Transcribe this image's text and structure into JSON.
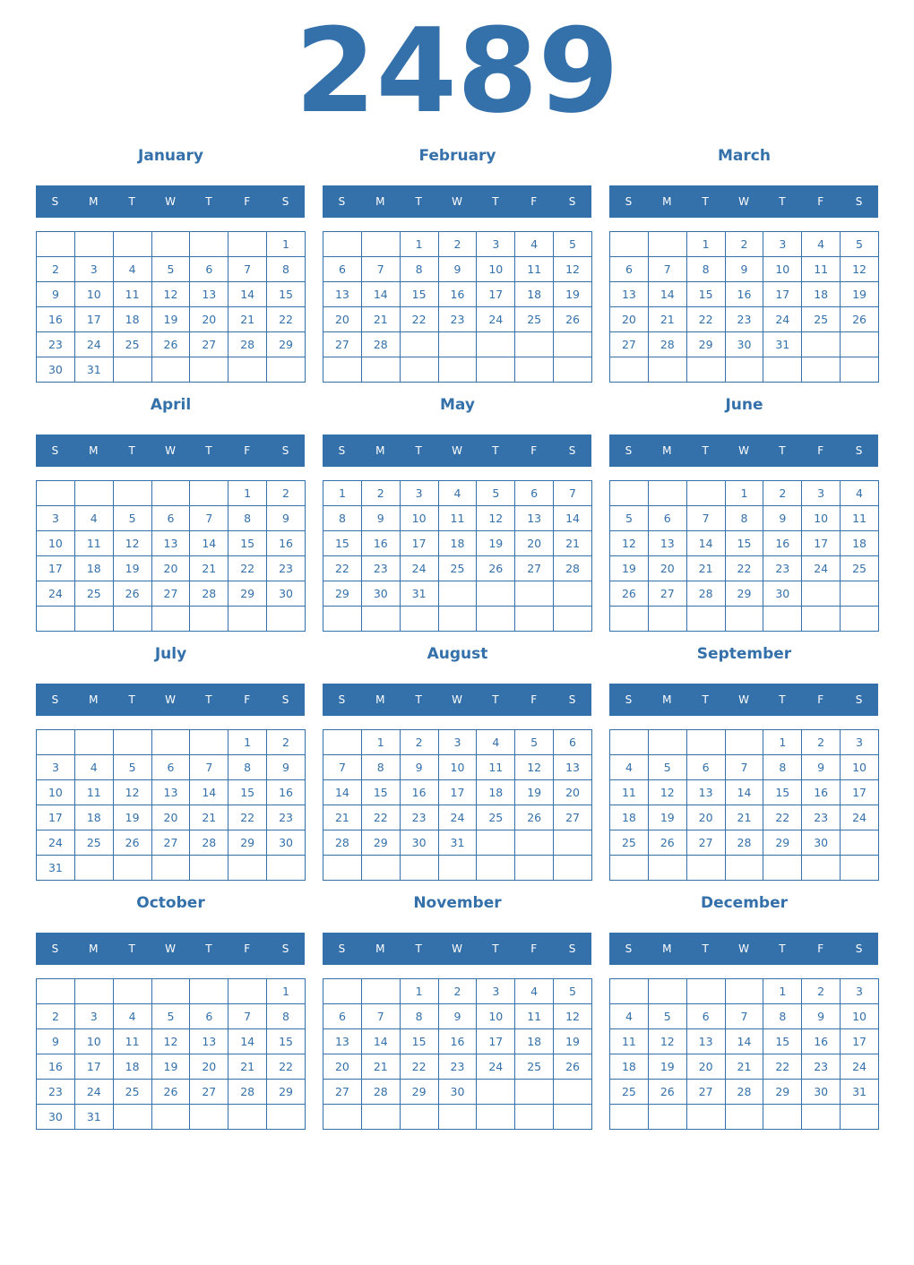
{
  "year": "2489",
  "weekday_headers": [
    "S",
    "M",
    "T",
    "W",
    "T",
    "F",
    "S"
  ],
  "colors": {
    "accent": "#3470aa"
  },
  "months": [
    {
      "name": "January",
      "weeks": [
        [
          null,
          null,
          null,
          null,
          null,
          null,
          1
        ],
        [
          2,
          3,
          4,
          5,
          6,
          7,
          8
        ],
        [
          9,
          10,
          11,
          12,
          13,
          14,
          15
        ],
        [
          16,
          17,
          18,
          19,
          20,
          21,
          22
        ],
        [
          23,
          24,
          25,
          26,
          27,
          28,
          29
        ],
        [
          30,
          31,
          null,
          null,
          null,
          null,
          null
        ]
      ]
    },
    {
      "name": "February",
      "weeks": [
        [
          null,
          null,
          1,
          2,
          3,
          4,
          5
        ],
        [
          6,
          7,
          8,
          9,
          10,
          11,
          12
        ],
        [
          13,
          14,
          15,
          16,
          17,
          18,
          19
        ],
        [
          20,
          21,
          22,
          23,
          24,
          25,
          26
        ],
        [
          27,
          28,
          null,
          null,
          null,
          null,
          null
        ],
        [
          null,
          null,
          null,
          null,
          null,
          null,
          null
        ]
      ]
    },
    {
      "name": "March",
      "weeks": [
        [
          null,
          null,
          1,
          2,
          3,
          4,
          5
        ],
        [
          6,
          7,
          8,
          9,
          10,
          11,
          12
        ],
        [
          13,
          14,
          15,
          16,
          17,
          18,
          19
        ],
        [
          20,
          21,
          22,
          23,
          24,
          25,
          26
        ],
        [
          27,
          28,
          29,
          30,
          31,
          null,
          null
        ],
        [
          null,
          null,
          null,
          null,
          null,
          null,
          null
        ]
      ]
    },
    {
      "name": "April",
      "weeks": [
        [
          null,
          null,
          null,
          null,
          null,
          1,
          2
        ],
        [
          3,
          4,
          5,
          6,
          7,
          8,
          9
        ],
        [
          10,
          11,
          12,
          13,
          14,
          15,
          16
        ],
        [
          17,
          18,
          19,
          20,
          21,
          22,
          23
        ],
        [
          24,
          25,
          26,
          27,
          28,
          29,
          30
        ],
        [
          null,
          null,
          null,
          null,
          null,
          null,
          null
        ]
      ]
    },
    {
      "name": "May",
      "weeks": [
        [
          1,
          2,
          3,
          4,
          5,
          6,
          7
        ],
        [
          8,
          9,
          10,
          11,
          12,
          13,
          14
        ],
        [
          15,
          16,
          17,
          18,
          19,
          20,
          21
        ],
        [
          22,
          23,
          24,
          25,
          26,
          27,
          28
        ],
        [
          29,
          30,
          31,
          null,
          null,
          null,
          null
        ],
        [
          null,
          null,
          null,
          null,
          null,
          null,
          null
        ]
      ]
    },
    {
      "name": "June",
      "weeks": [
        [
          null,
          null,
          null,
          1,
          2,
          3,
          4
        ],
        [
          5,
          6,
          7,
          8,
          9,
          10,
          11
        ],
        [
          12,
          13,
          14,
          15,
          16,
          17,
          18
        ],
        [
          19,
          20,
          21,
          22,
          23,
          24,
          25
        ],
        [
          26,
          27,
          28,
          29,
          30,
          null,
          null
        ],
        [
          null,
          null,
          null,
          null,
          null,
          null,
          null
        ]
      ]
    },
    {
      "name": "July",
      "weeks": [
        [
          null,
          null,
          null,
          null,
          null,
          1,
          2
        ],
        [
          3,
          4,
          5,
          6,
          7,
          8,
          9
        ],
        [
          10,
          11,
          12,
          13,
          14,
          15,
          16
        ],
        [
          17,
          18,
          19,
          20,
          21,
          22,
          23
        ],
        [
          24,
          25,
          26,
          27,
          28,
          29,
          30
        ],
        [
          31,
          null,
          null,
          null,
          null,
          null,
          null
        ]
      ]
    },
    {
      "name": "August",
      "weeks": [
        [
          null,
          1,
          2,
          3,
          4,
          5,
          6
        ],
        [
          7,
          8,
          9,
          10,
          11,
          12,
          13
        ],
        [
          14,
          15,
          16,
          17,
          18,
          19,
          20
        ],
        [
          21,
          22,
          23,
          24,
          25,
          26,
          27
        ],
        [
          28,
          29,
          30,
          31,
          null,
          null,
          null
        ],
        [
          null,
          null,
          null,
          null,
          null,
          null,
          null
        ]
      ]
    },
    {
      "name": "September",
      "weeks": [
        [
          null,
          null,
          null,
          null,
          1,
          2,
          3
        ],
        [
          4,
          5,
          6,
          7,
          8,
          9,
          10
        ],
        [
          11,
          12,
          13,
          14,
          15,
          16,
          17
        ],
        [
          18,
          19,
          20,
          21,
          22,
          23,
          24
        ],
        [
          25,
          26,
          27,
          28,
          29,
          30,
          null
        ],
        [
          null,
          null,
          null,
          null,
          null,
          null,
          null
        ]
      ]
    },
    {
      "name": "October",
      "weeks": [
        [
          null,
          null,
          null,
          null,
          null,
          null,
          1
        ],
        [
          2,
          3,
          4,
          5,
          6,
          7,
          8
        ],
        [
          9,
          10,
          11,
          12,
          13,
          14,
          15
        ],
        [
          16,
          17,
          18,
          19,
          20,
          21,
          22
        ],
        [
          23,
          24,
          25,
          26,
          27,
          28,
          29
        ],
        [
          30,
          31,
          null,
          null,
          null,
          null,
          null
        ]
      ]
    },
    {
      "name": "November",
      "weeks": [
        [
          null,
          null,
          1,
          2,
          3,
          4,
          5
        ],
        [
          6,
          7,
          8,
          9,
          10,
          11,
          12
        ],
        [
          13,
          14,
          15,
          16,
          17,
          18,
          19
        ],
        [
          20,
          21,
          22,
          23,
          24,
          25,
          26
        ],
        [
          27,
          28,
          29,
          30,
          null,
          null,
          null
        ],
        [
          null,
          null,
          null,
          null,
          null,
          null,
          null
        ]
      ]
    },
    {
      "name": "December",
      "weeks": [
        [
          null,
          null,
          null,
          null,
          1,
          2,
          3
        ],
        [
          4,
          5,
          6,
          7,
          8,
          9,
          10
        ],
        [
          11,
          12,
          13,
          14,
          15,
          16,
          17
        ],
        [
          18,
          19,
          20,
          21,
          22,
          23,
          24
        ],
        [
          25,
          26,
          27,
          28,
          29,
          30,
          31
        ],
        [
          null,
          null,
          null,
          null,
          null,
          null,
          null
        ]
      ]
    }
  ]
}
